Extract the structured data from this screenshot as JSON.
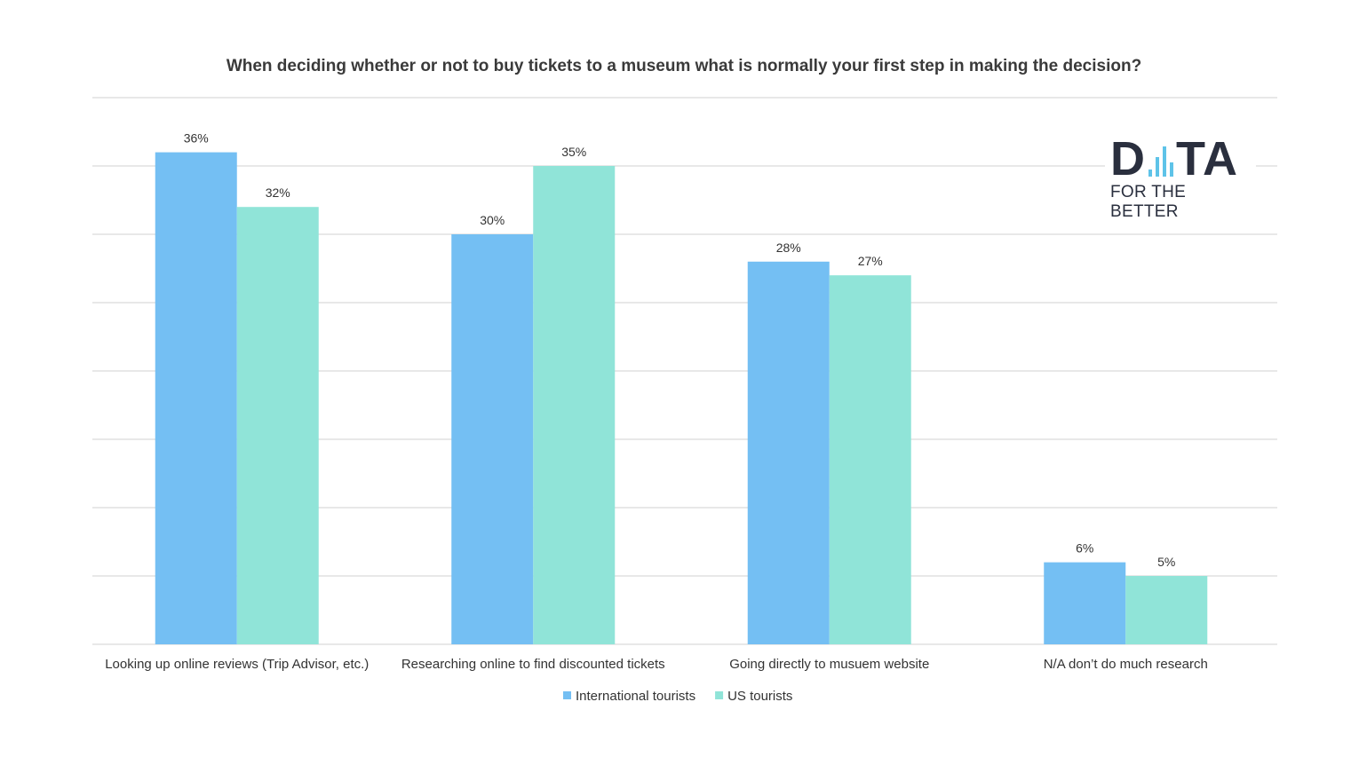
{
  "chart_data": {
    "type": "bar",
    "title": "When deciding whether or not to buy tickets to a museum what is normally your first step in making the decision?",
    "categories": [
      "Looking up online reviews (Trip Advisor, etc.)",
      "Researching online to find discounted tickets",
      "Going directly to musuem website",
      "N/A don’t do much research"
    ],
    "series": [
      {
        "name": "International tourists",
        "values": [
          36,
          30,
          28,
          6
        ],
        "labels": [
          "36%",
          "30%",
          "28%",
          "6%"
        ],
        "color": "#74bff3"
      },
      {
        "name": "US tourists",
        "values": [
          32,
          35,
          27,
          5
        ],
        "labels": [
          "32%",
          "35%",
          "27%",
          "5%"
        ],
        "color": "#90e4d8"
      }
    ],
    "ylim": [
      0,
      40
    ],
    "grid": true,
    "legend": "bottom-center",
    "y_axis_labels_shown": false
  },
  "logo": {
    "text_top": "D.ıılTA",
    "text_bottom": "FOR THE BETTER",
    "color": "#2a2f3e",
    "accent": "#5ec3e8"
  }
}
